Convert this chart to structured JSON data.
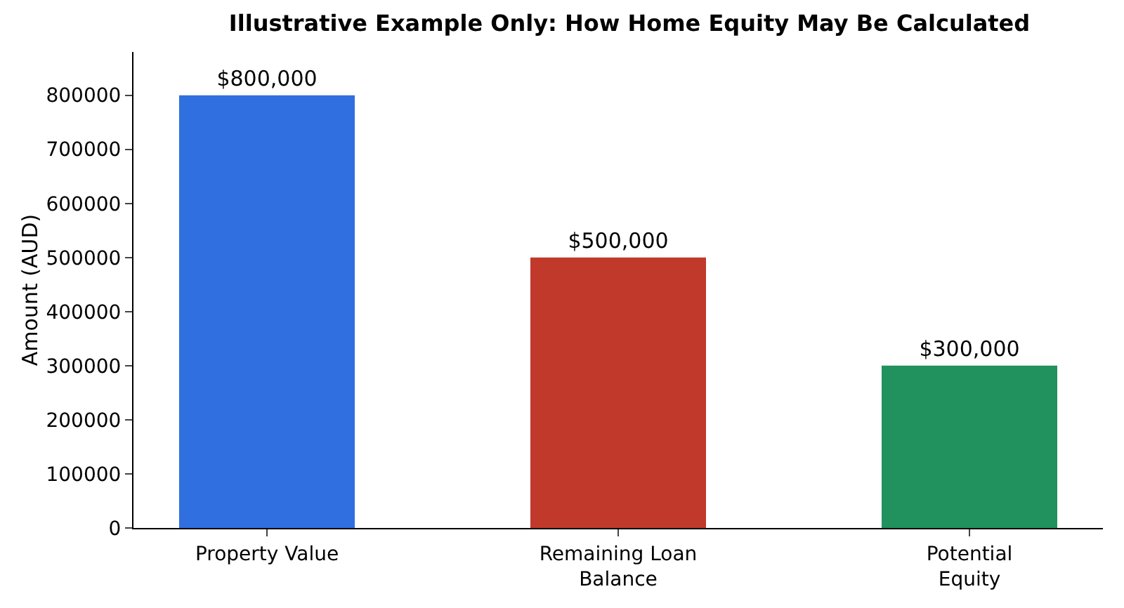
{
  "chart_data": {
    "type": "bar",
    "title": "Illustrative Example Only: How Home Equity May Be Calculated",
    "ylabel": "Amount (AUD)",
    "categories": [
      "Property Value",
      "Remaining Loan Balance",
      "Potential Equity"
    ],
    "values": [
      800000,
      500000,
      300000
    ],
    "colors": [
      "#306fe0",
      "#c0392b",
      "#21915e"
    ],
    "value_labels": [
      "$800,000",
      "$500,000",
      "$300,000"
    ],
    "ylim": [
      0,
      880000
    ],
    "yticks": [
      0,
      100000,
      200000,
      300000,
      400000,
      500000,
      600000,
      700000,
      800000
    ],
    "grid": false,
    "legend": false
  }
}
